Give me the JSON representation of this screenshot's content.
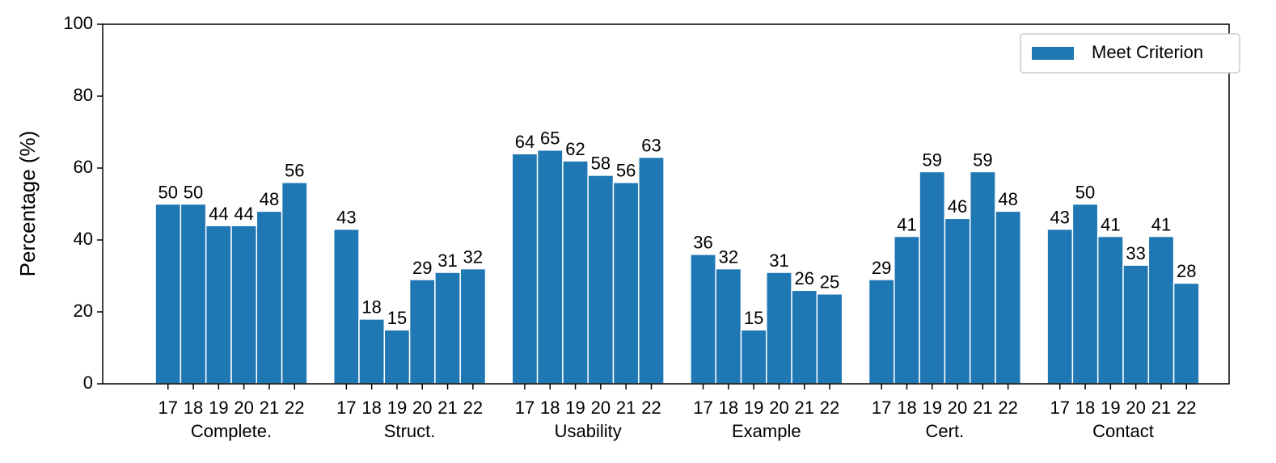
{
  "chart_data": {
    "type": "grouped_bar",
    "ylabel": "Percentage (%)",
    "categories": [
      "Complete.",
      "Struct.",
      "Usability",
      "Example",
      "Cert.",
      "Contact"
    ],
    "subcategories": [
      "17",
      "18",
      "19",
      "20",
      "21",
      "22"
    ],
    "series": [
      {
        "name": "Meet Criterion",
        "color": "#1f77b4",
        "values": [
          [
            50,
            50,
            44,
            44,
            48,
            56
          ],
          [
            43,
            18,
            15,
            29,
            31,
            32
          ],
          [
            64,
            65,
            62,
            58,
            56,
            63
          ],
          [
            36,
            32,
            15,
            31,
            26,
            25
          ],
          [
            29,
            41,
            59,
            46,
            59,
            48
          ],
          [
            43,
            50,
            41,
            33,
            41,
            28
          ]
        ]
      }
    ],
    "ylim": [
      0,
      100
    ],
    "yticks": [
      0,
      20,
      40,
      60,
      80,
      100
    ],
    "legend": "upper right"
  }
}
